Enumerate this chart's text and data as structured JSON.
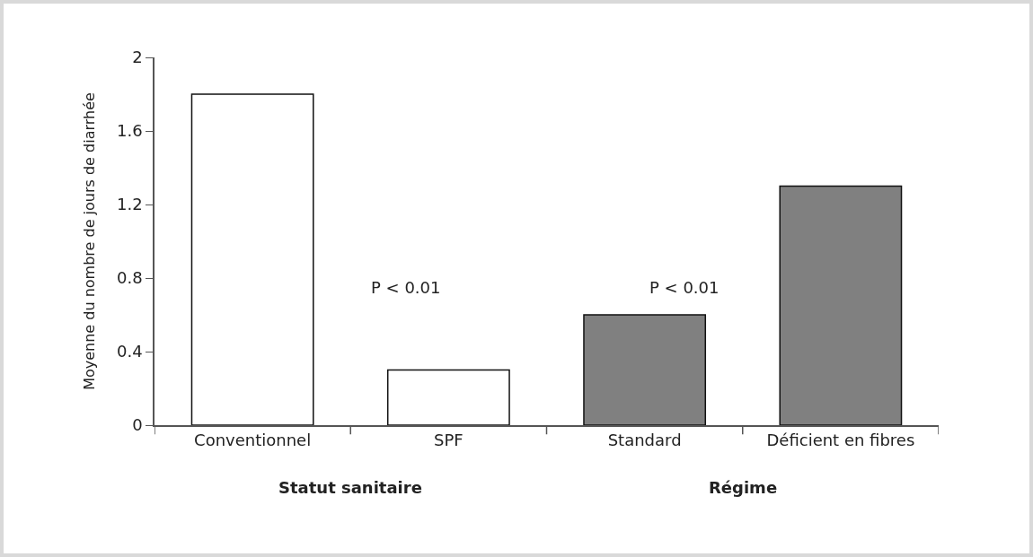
{
  "chart_data": {
    "type": "bar",
    "ylabel": "Moyenne du nombre de jours de diarrhée",
    "categories": [
      "Conventionnel",
      "SPF",
      "Standard",
      "Déficient en fibres"
    ],
    "values": [
      1.8,
      0.3,
      0.6,
      1.3
    ],
    "colors": [
      "#ffffff",
      "#ffffff",
      "#808080",
      "#808080"
    ],
    "ylim": [
      0,
      2
    ],
    "yticks": [
      0,
      0.4,
      0.8,
      1.2,
      1.6,
      2
    ],
    "grid": false,
    "annotations": [
      "P < 0.01",
      "P < 0.01",
      "Statut sanitaire",
      "Régime"
    ]
  }
}
